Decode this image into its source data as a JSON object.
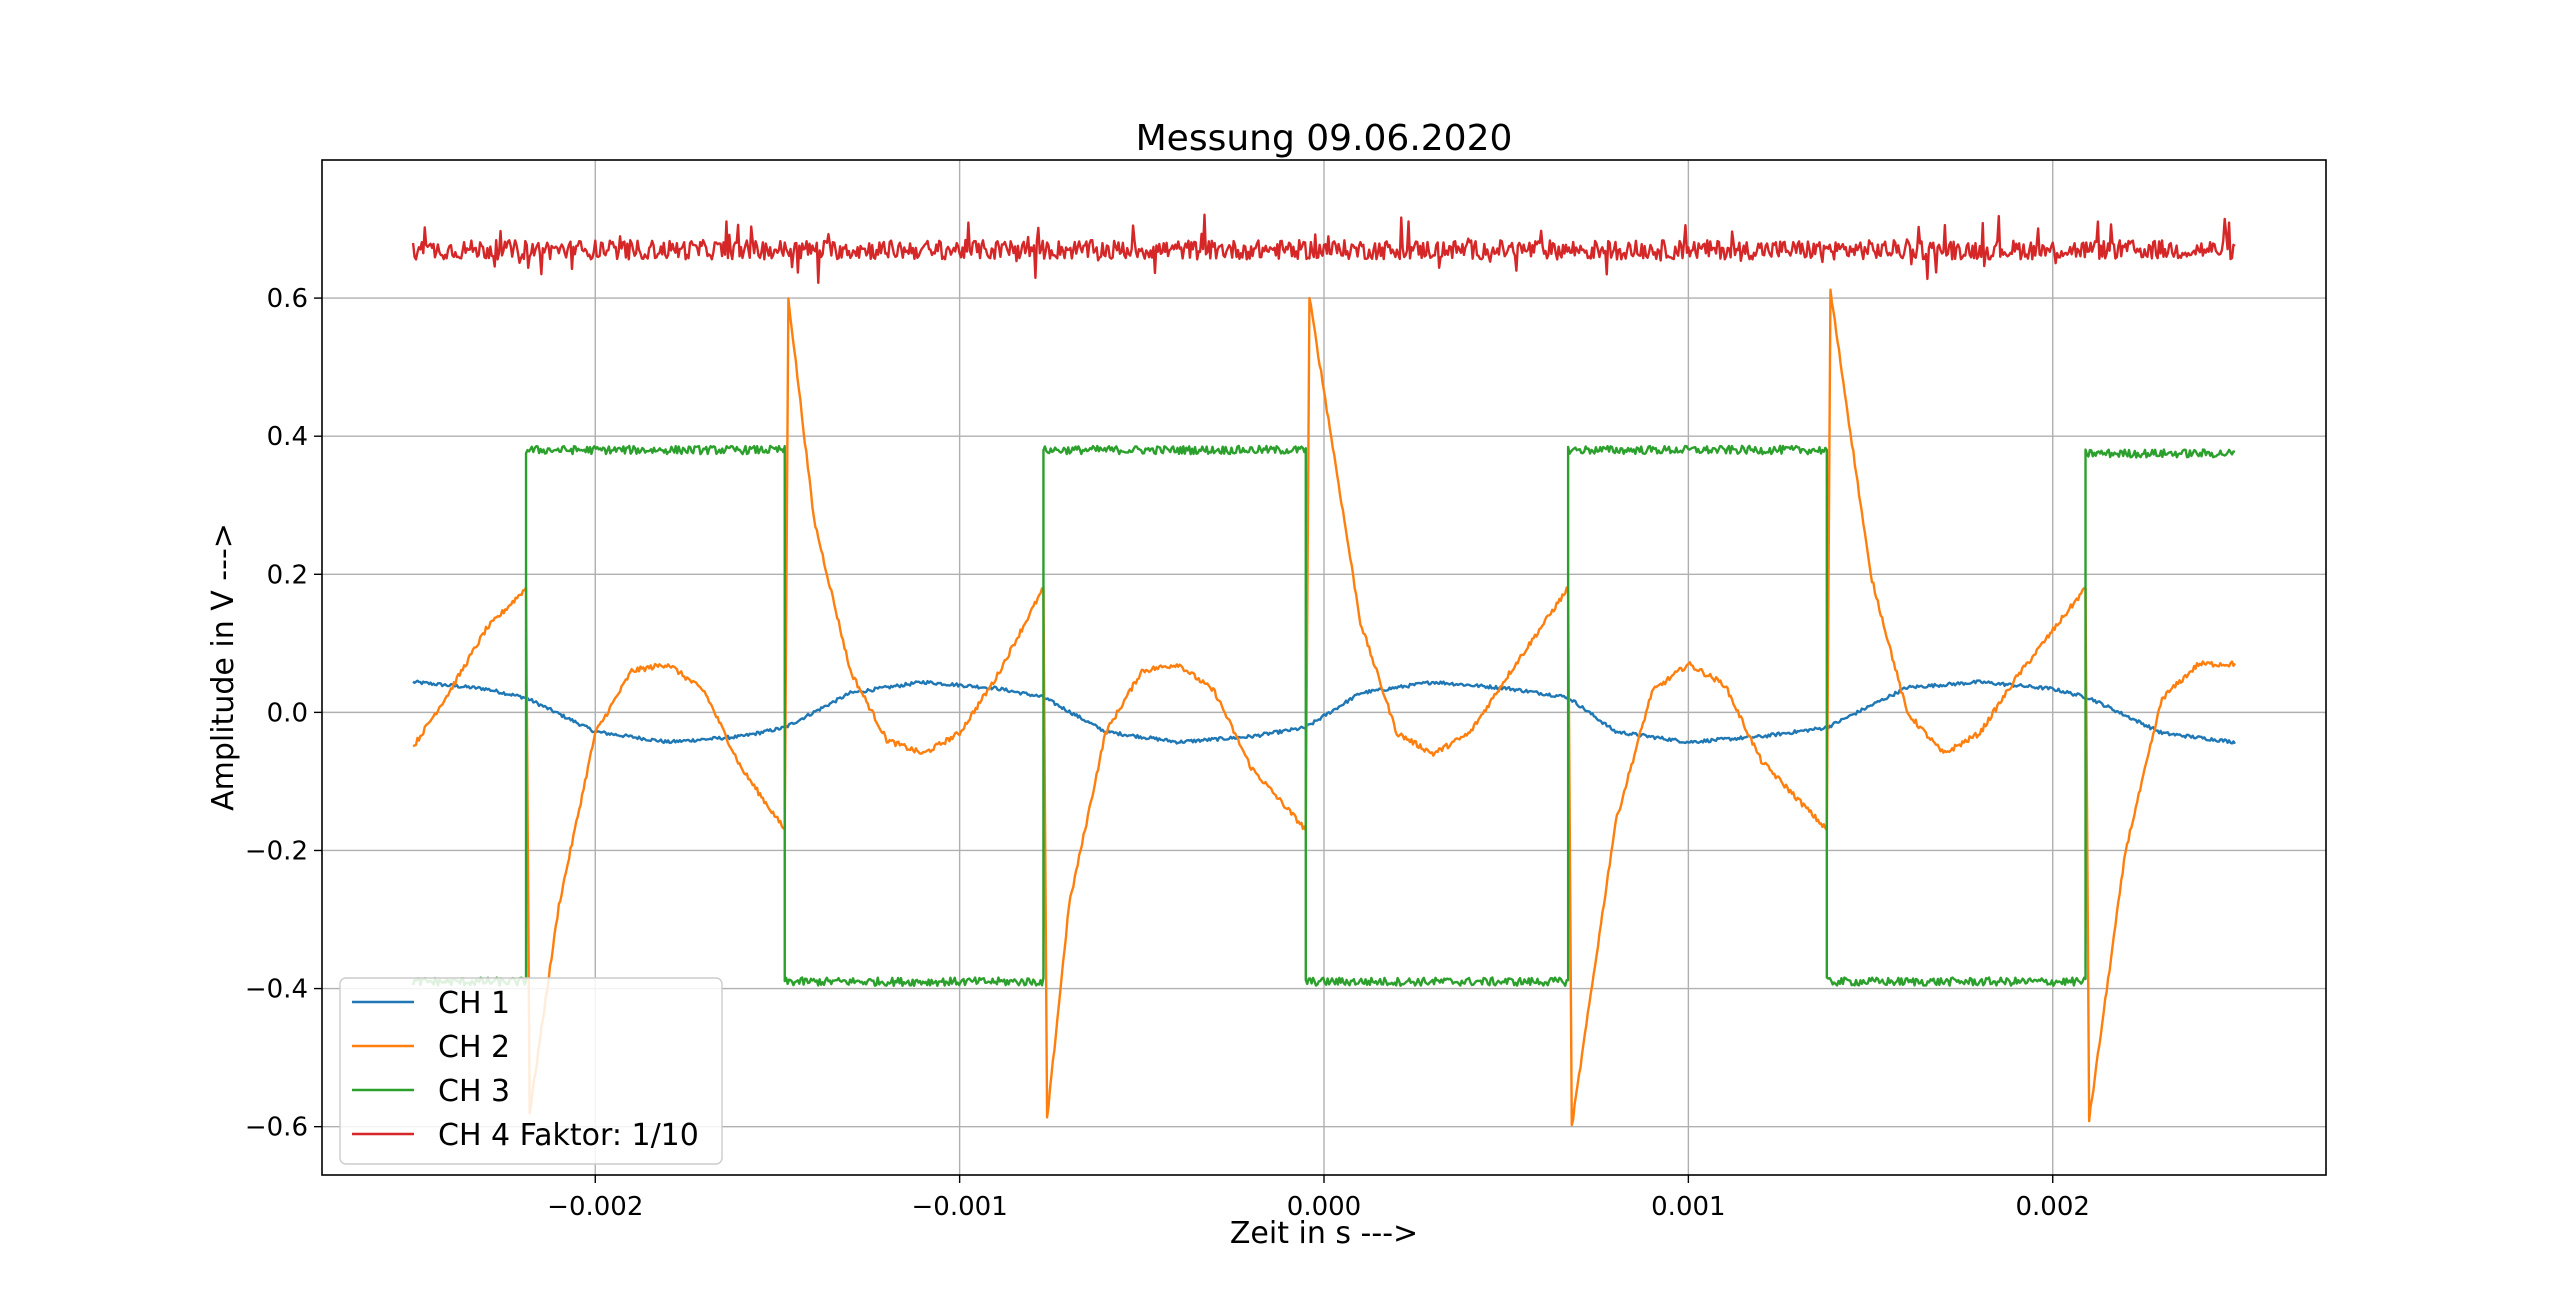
{
  "chart_data": {
    "type": "line",
    "title": "Messung 09.06.2020",
    "xlabel": "Zeit in s --->",
    "ylabel": "Amplitude in V --->",
    "xlim": [
      -0.00275,
      0.00275
    ],
    "ylim": [
      -0.67,
      0.8
    ],
    "xticks": [
      -0.002,
      -0.001,
      0.0,
      0.001,
      0.002
    ],
    "xtick_labels": [
      "−0.002",
      "−0.001",
      "0.000",
      "0.001",
      "0.002"
    ],
    "yticks": [
      -0.6,
      -0.4,
      -0.2,
      0.0,
      0.2,
      0.4,
      0.6
    ],
    "ytick_labels": [
      "−0.6",
      "−0.4",
      "−0.2",
      "0.0",
      "0.2",
      "0.4",
      "0.6"
    ],
    "grid": true,
    "legend_position": "lower-left",
    "series": [
      {
        "name": "CH 1",
        "color": "#1f77b4",
        "x": [
          -0.0025,
          -0.0023,
          -0.00219,
          -0.002,
          -0.0018,
          -0.0016,
          -0.00148,
          -0.0013,
          -0.0011,
          -0.0009,
          -0.00077,
          -0.0006,
          -0.0004,
          -0.0002,
          -5e-05,
          0.0001,
          0.0003,
          0.0005,
          0.00067,
          0.0008,
          0.001,
          0.0012,
          0.00138,
          0.0016,
          0.0018,
          0.002,
          0.0021,
          0.0023,
          0.0025
        ],
        "y": [
          0.044,
          0.034,
          0.021,
          -0.028,
          -0.043,
          -0.035,
          -0.022,
          0.028,
          0.044,
          0.035,
          0.022,
          -0.028,
          -0.043,
          -0.035,
          -0.022,
          0.028,
          0.044,
          0.035,
          0.022,
          -0.028,
          -0.043,
          -0.035,
          -0.022,
          0.036,
          0.044,
          0.034,
          0.021,
          -0.03,
          -0.043
        ]
      },
      {
        "name": "CH 2",
        "color": "#ff7f0e",
        "x": [
          -0.0025,
          -0.0024,
          -0.0023,
          -0.00219,
          -0.00218,
          -0.0021,
          -0.002,
          -0.0019,
          -0.0018,
          -0.0017,
          -0.0016,
          -0.00148,
          -0.00147,
          -0.0014,
          -0.0013,
          -0.0012,
          -0.0011,
          -0.001,
          -0.0009,
          -0.00077,
          -0.00076,
          -0.0007,
          -0.0006,
          -0.0005,
          -0.0004,
          -0.0003,
          -0.0002,
          -5e-05,
          -4e-05,
          0.0001,
          0.0002,
          0.0003,
          0.0004,
          0.0005,
          0.00067,
          0.00068,
          0.0008,
          0.0009,
          0.001,
          0.0011,
          0.0012,
          0.00138,
          0.00139,
          0.0015,
          0.0016,
          0.0017,
          0.0018,
          0.0019,
          0.00209,
          0.0021,
          0.0022,
          0.0023,
          0.0024,
          0.0025
        ],
        "y": [
          -0.05,
          0.03,
          0.12,
          0.18,
          -0.58,
          -0.28,
          -0.03,
          0.06,
          0.07,
          0.03,
          -0.08,
          -0.17,
          0.6,
          0.28,
          0.06,
          -0.04,
          -0.06,
          -0.03,
          0.05,
          0.18,
          -0.59,
          -0.28,
          -0.03,
          0.06,
          0.07,
          0.03,
          -0.08,
          -0.17,
          0.6,
          0.13,
          -0.03,
          -0.06,
          -0.03,
          0.05,
          0.18,
          -0.6,
          -0.16,
          0.03,
          0.07,
          0.04,
          -0.07,
          -0.17,
          0.61,
          0.2,
          0.0,
          -0.06,
          -0.03,
          0.05,
          0.18,
          -0.59,
          -0.2,
          0.02,
          0.07,
          0.07
        ]
      },
      {
        "name": "CH 3",
        "color": "#2ca02c",
        "x": [
          -0.0025,
          -0.00219,
          -0.00219,
          -0.00148,
          -0.00148,
          -0.00077,
          -0.00077,
          -5e-05,
          -5e-05,
          0.00067,
          0.00067,
          0.00138,
          0.00138,
          0.00209,
          0.00209,
          0.0025
        ],
        "y": [
          -0.39,
          -0.39,
          0.38,
          0.38,
          -0.39,
          -0.39,
          0.38,
          0.38,
          -0.39,
          -0.39,
          0.38,
          0.38,
          -0.39,
          -0.39,
          0.375,
          0.375
        ]
      },
      {
        "name": "CH 4 Faktor: 1/10",
        "color": "#d62728",
        "x": [
          -0.0025,
          0.0025
        ],
        "y": [
          0.67,
          0.67
        ]
      }
    ]
  }
}
